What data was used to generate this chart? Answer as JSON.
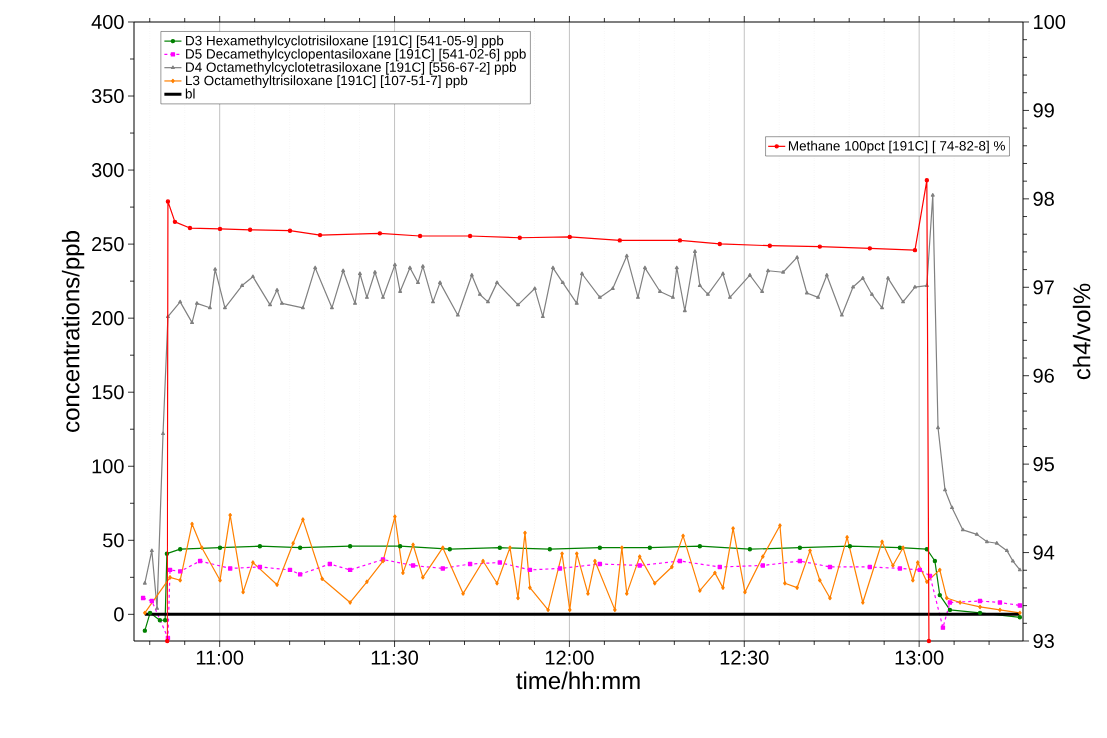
{
  "chart_data": {
    "type": "line",
    "xlabel": "time/hh:mm",
    "ylabel": "concentrations/ppb",
    "y2label": "ch4/vol%",
    "xlim": [
      10.755,
      13.297
    ],
    "ylim": [
      -18,
      400
    ],
    "y2lim": [
      93,
      100
    ],
    "xticks": [
      {
        "value": 10.8,
        "label": null
      },
      {
        "value": 10.9,
        "label": null
      },
      {
        "value": 11,
        "label": "11:00"
      },
      {
        "value": 11.1,
        "label": null
      },
      {
        "value": 11.2,
        "label": null
      },
      {
        "value": 11.3,
        "label": null
      },
      {
        "value": 11.4,
        "label": null
      },
      {
        "value": 11.5,
        "label": "11:30"
      },
      {
        "value": 11.6,
        "label": null
      },
      {
        "value": 11.7,
        "label": null
      },
      {
        "value": 11.8,
        "label": null
      },
      {
        "value": 11.9,
        "label": null
      },
      {
        "value": 12,
        "label": "12:00"
      },
      {
        "value": 12.1,
        "label": null
      },
      {
        "value": 12.2,
        "label": null
      },
      {
        "value": 12.3,
        "label": null
      },
      {
        "value": 12.4,
        "label": null
      },
      {
        "value": 12.5,
        "label": "12:30"
      },
      {
        "value": 12.6,
        "label": null
      },
      {
        "value": 12.7,
        "label": null
      },
      {
        "value": 12.8,
        "label": null
      },
      {
        "value": 12.9,
        "label": null
      },
      {
        "value": 13,
        "label": "13:00"
      },
      {
        "value": 13.1,
        "label": null
      },
      {
        "value": 13.2,
        "label": null
      }
    ],
    "yticks": [
      0,
      50,
      100,
      150,
      200,
      250,
      300,
      350,
      400
    ],
    "y2ticks": [
      93,
      94,
      95,
      96,
      97,
      98,
      99,
      100
    ],
    "grid": "x",
    "legend": "top left",
    "series": [
      {
        "name": "D3 Hexamethylcyclotrisiloxane [191C] [541-05-9] ppb",
        "color": "#008000",
        "marker": "circle",
        "line_style": "solid",
        "x": [
          10.786,
          10.801,
          10.829,
          10.844,
          10.849,
          10.887,
          11.001,
          11.115,
          11.23,
          11.373,
          11.516,
          11.658,
          11.801,
          11.944,
          12.087,
          12.23,
          12.373,
          12.516,
          12.659,
          12.802,
          12.945,
          13.022,
          13.045,
          13.059,
          13.088,
          13.174,
          13.288
        ],
        "values": [
          -11,
          1,
          -4,
          -4,
          41,
          44,
          45,
          46,
          45,
          46,
          46,
          44,
          45,
          44,
          45,
          45,
          46,
          44,
          45,
          46,
          45,
          44,
          36,
          13,
          3,
          1,
          -2
        ]
      },
      {
        "name": "D5 Decamethylcyclopentasiloxane [191C] [541-02-6] ppb",
        "color": "#ff00ff",
        "marker": "square",
        "line_style": "dashed",
        "x": [
          10.781,
          10.806,
          10.852,
          10.858,
          10.887,
          10.944,
          11.03,
          11.115,
          11.201,
          11.23,
          11.315,
          11.373,
          11.467,
          11.553,
          11.638,
          11.716,
          11.801,
          11.887,
          11.973,
          12.087,
          12.201,
          12.316,
          12.43,
          12.553,
          12.659,
          12.745,
          12.859,
          12.945,
          13.002,
          13.031,
          13.051,
          13.068,
          13.088,
          13.174,
          13.231,
          13.288
        ],
        "values": [
          11,
          9,
          -16,
          30,
          29,
          36,
          31,
          32,
          30,
          27,
          34,
          30,
          37,
          33,
          31,
          34,
          35,
          30,
          31,
          34,
          33,
          36,
          32,
          33,
          36,
          32,
          32,
          31,
          30,
          26,
          null,
          -9,
          8,
          9,
          8,
          6
        ]
      },
      {
        "name": "D4 Octamethylcyclotetrasiloxane [191C] [556-67-2] ppb",
        "color": "#808080",
        "marker": "triangle",
        "line_style": "solid",
        "x": [
          10.786,
          10.806,
          10.821,
          10.838,
          10.852,
          10.887,
          10.921,
          10.935,
          10.972,
          10.987,
          11.015,
          11.064,
          11.095,
          11.144,
          11.164,
          11.178,
          11.238,
          11.273,
          11.321,
          11.353,
          11.387,
          11.401,
          11.421,
          11.444,
          11.467,
          11.501,
          11.516,
          11.544,
          11.567,
          11.581,
          11.61,
          11.63,
          11.681,
          11.721,
          11.744,
          11.767,
          11.793,
          11.853,
          11.901,
          11.924,
          11.953,
          11.981,
          12.021,
          12.036,
          12.087,
          12.124,
          12.164,
          12.196,
          12.216,
          12.259,
          12.296,
          12.307,
          12.33,
          12.359,
          12.373,
          12.396,
          12.439,
          12.459,
          12.516,
          12.551,
          12.568,
          12.611,
          12.651,
          12.679,
          12.711,
          12.736,
          12.779,
          12.811,
          12.839,
          12.865,
          12.894,
          12.911,
          12.954,
          12.988,
          13.022,
          13.039,
          13.054,
          13.074,
          13.094,
          13.125,
          13.165,
          13.194,
          13.222,
          13.251,
          13.268,
          13.288
        ],
        "values": [
          21,
          43,
          4,
          122,
          201,
          211,
          197,
          210,
          207,
          233,
          207,
          222,
          228,
          209,
          219,
          210,
          207,
          234,
          207,
          232,
          210,
          230,
          214,
          231,
          214,
          236,
          218,
          234,
          224,
          235,
          211,
          224,
          202,
          229,
          216,
          211,
          224,
          209,
          220,
          201,
          234,
          224,
          210,
          230,
          214,
          220,
          242,
          214,
          234,
          218,
          214,
          234,
          205,
          245,
          222,
          216,
          230,
          214,
          229,
          218,
          232,
          231,
          241,
          217,
          214,
          229,
          202,
          221,
          227,
          216,
          207,
          227,
          211,
          221,
          222,
          283,
          126,
          84,
          72,
          57,
          54,
          49,
          48,
          43,
          36,
          30
        ]
      },
      {
        "name": "L3 Octamethyltrisiloxane [191C] [107-51-7] ppb",
        "color": "#ff8000",
        "marker": "diamond",
        "line_style": "solid",
        "x": [
          10.786,
          10.821,
          10.858,
          10.887,
          10.921,
          10.949,
          11.001,
          11.03,
          11.067,
          11.095,
          11.164,
          11.21,
          11.238,
          11.293,
          11.373,
          11.421,
          11.467,
          11.501,
          11.524,
          11.553,
          11.581,
          11.638,
          11.696,
          11.753,
          11.793,
          11.83,
          11.853,
          11.873,
          11.887,
          11.939,
          11.979,
          12.001,
          12.021,
          12.053,
          12.073,
          12.13,
          12.15,
          12.164,
          12.201,
          12.244,
          12.293,
          12.325,
          12.373,
          12.416,
          12.439,
          12.468,
          12.502,
          12.553,
          12.602,
          12.616,
          12.651,
          12.688,
          12.716,
          12.745,
          12.794,
          12.839,
          12.894,
          12.925,
          12.954,
          12.982,
          12.996,
          13.022,
          13.031,
          13.059,
          13.079,
          13.117,
          13.174,
          13.231,
          13.288
        ],
        "values": [
          1,
          null,
          25,
          23,
          61,
          45,
          23,
          67,
          15,
          35,
          20,
          48,
          64,
          24,
          8,
          22,
          36,
          66,
          28,
          47,
          25,
          45,
          14,
          36,
          21,
          45,
          11,
          55,
          18,
          3,
          41,
          3,
          41,
          14,
          36,
          3,
          45,
          14,
          39,
          21,
          32,
          53,
          16,
          28,
          18,
          58,
          15,
          39,
          60,
          21,
          18,
          43,
          23,
          11,
          52,
          8,
          49,
          33,
          45,
          23,
          35,
          22,
          null,
          30,
          11,
          8,
          5,
          3,
          1
        ]
      },
      {
        "name": "bl",
        "color": "#000000",
        "marker": "none",
        "line_style": "solid",
        "x": [
          10.786,
          13.288
        ],
        "values": [
          0,
          0
        ]
      },
      {
        "name": "Methane 100pct [191C] [ 74-82-8] %",
        "color": "#ff0000",
        "marker": "circle",
        "line_style": "solid",
        "axis": "y2",
        "x": [
          10.85,
          10.852,
          10.872,
          10.915,
          11.001,
          11.087,
          11.201,
          11.287,
          11.458,
          11.573,
          11.716,
          11.858,
          12.001,
          12.144,
          12.316,
          12.43,
          12.573,
          12.716,
          12.859,
          12.988,
          13.022,
          13.028
        ],
        "values": [
          93.0,
          97.97,
          97.74,
          97.67,
          97.66,
          97.65,
          97.64,
          97.59,
          97.61,
          97.58,
          97.58,
          97.56,
          97.57,
          97.53,
          97.53,
          97.49,
          97.47,
          97.46,
          97.44,
          97.42,
          98.21,
          93.0
        ]
      }
    ]
  }
}
